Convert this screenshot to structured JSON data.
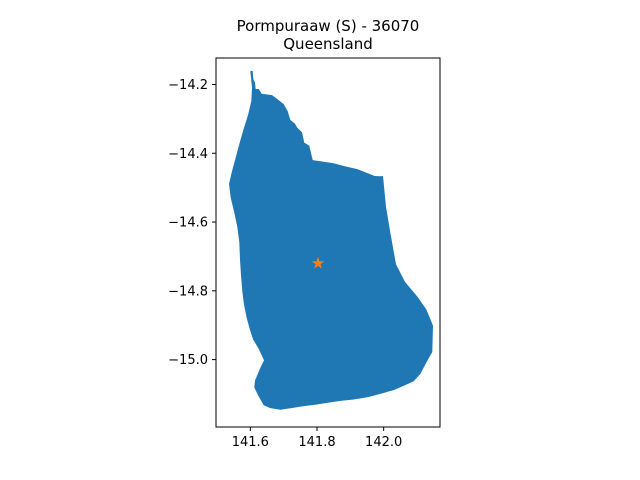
{
  "title": {
    "line1": "Pormpuraaw (S) - 36070",
    "line2": "Queensland"
  },
  "map": {
    "xlim": [
      141.497,
      142.169
    ],
    "ylim": [
      -15.196,
      -14.123
    ],
    "x_ticks": [
      {
        "value": 141.6,
        "label": "141.6"
      },
      {
        "value": 141.8,
        "label": "141.8"
      },
      {
        "value": 142.0,
        "label": "142.0"
      }
    ],
    "y_ticks": [
      {
        "value": -14.2,
        "label": "−14.2"
      },
      {
        "value": -14.4,
        "label": "−14.4"
      },
      {
        "value": -14.6,
        "label": "−14.6"
      },
      {
        "value": -14.8,
        "label": "−14.8"
      },
      {
        "value": -15.0,
        "label": "−15.0"
      }
    ],
    "region": {
      "name": "Pormpuraaw (S) - 36070",
      "fill_color": "#1f77b4",
      "boundary": [
        [
          141.6,
          -14.16
        ],
        [
          141.607,
          -14.161
        ],
        [
          141.609,
          -14.185
        ],
        [
          141.614,
          -14.194
        ],
        [
          141.616,
          -14.213
        ],
        [
          141.625,
          -14.213
        ],
        [
          141.634,
          -14.227
        ],
        [
          141.665,
          -14.231
        ],
        [
          141.679,
          -14.241
        ],
        [
          141.7,
          -14.257
        ],
        [
          141.712,
          -14.278
        ],
        [
          141.72,
          -14.303
        ],
        [
          141.734,
          -14.314
        ],
        [
          141.741,
          -14.326
        ],
        [
          141.755,
          -14.339
        ],
        [
          141.762,
          -14.369
        ],
        [
          141.777,
          -14.378
        ],
        [
          141.787,
          -14.42
        ],
        [
          141.816,
          -14.424
        ],
        [
          141.85,
          -14.429
        ],
        [
          141.883,
          -14.438
        ],
        [
          141.921,
          -14.446
        ],
        [
          141.973,
          -14.466
        ],
        [
          141.989,
          -14.467
        ],
        [
          141.998,
          -14.466
        ],
        [
          142.007,
          -14.556
        ],
        [
          142.021,
          -14.637
        ],
        [
          142.037,
          -14.723
        ],
        [
          142.064,
          -14.774
        ],
        [
          142.102,
          -14.818
        ],
        [
          142.128,
          -14.854
        ],
        [
          142.148,
          -14.901
        ],
        [
          142.146,
          -14.978
        ],
        [
          142.13,
          -15.005
        ],
        [
          142.11,
          -15.042
        ],
        [
          142.09,
          -15.063
        ],
        [
          142.063,
          -15.075
        ],
        [
          142.032,
          -15.088
        ],
        [
          141.993,
          -15.099
        ],
        [
          141.953,
          -15.109
        ],
        [
          141.91,
          -15.116
        ],
        [
          141.87,
          -15.12
        ],
        [
          141.83,
          -15.126
        ],
        [
          141.797,
          -15.131
        ],
        [
          141.755,
          -15.136
        ],
        [
          141.723,
          -15.141
        ],
        [
          141.69,
          -15.146
        ],
        [
          141.66,
          -15.141
        ],
        [
          141.64,
          -15.133
        ],
        [
          141.624,
          -15.105
        ],
        [
          141.612,
          -15.081
        ],
        [
          141.614,
          -15.061
        ],
        [
          141.629,
          -15.026
        ],
        [
          141.641,
          -15.002
        ],
        [
          141.625,
          -14.969
        ],
        [
          141.608,
          -14.941
        ],
        [
          141.599,
          -14.914
        ],
        [
          141.589,
          -14.879
        ],
        [
          141.581,
          -14.84
        ],
        [
          141.576,
          -14.801
        ],
        [
          141.572,
          -14.755
        ],
        [
          141.569,
          -14.709
        ],
        [
          141.567,
          -14.659
        ],
        [
          141.561,
          -14.614
        ],
        [
          141.551,
          -14.569
        ],
        [
          141.541,
          -14.529
        ],
        [
          141.536,
          -14.489
        ],
        [
          141.546,
          -14.449
        ],
        [
          141.557,
          -14.409
        ],
        [
          141.568,
          -14.369
        ],
        [
          141.58,
          -14.329
        ],
        [
          141.593,
          -14.289
        ],
        [
          141.603,
          -14.249
        ],
        [
          141.605,
          -14.209
        ],
        [
          141.6,
          -14.16
        ]
      ]
    },
    "marker": {
      "name": "centroid",
      "x": 141.803,
      "y": -14.72,
      "color": "#ff7f0e"
    }
  }
}
